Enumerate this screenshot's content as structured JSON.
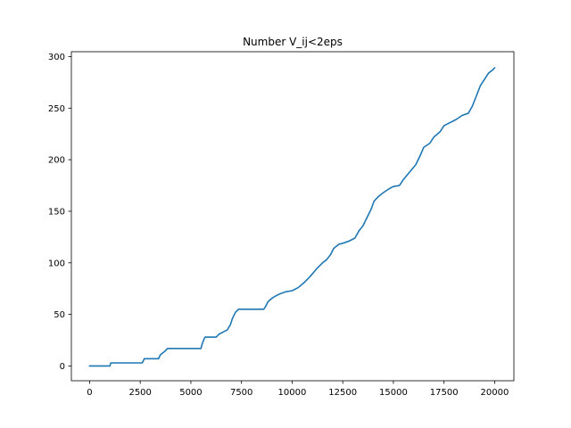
{
  "chart_data": {
    "type": "line",
    "title": "Number V_ij<2eps",
    "xlabel": "",
    "ylabel": "",
    "xlim": [
      -900,
      20950
    ],
    "ylim": [
      -14.3,
      304.7
    ],
    "xticks": [
      0,
      2500,
      5000,
      7500,
      10000,
      12500,
      15000,
      17500,
      20000
    ],
    "xtick_labels": [
      "0",
      "2500",
      "5000",
      "7500",
      "10000",
      "12500",
      "15000",
      "17500",
      "20000"
    ],
    "yticks": [
      0,
      50,
      100,
      150,
      200,
      250,
      300
    ],
    "ytick_labels": [
      "0",
      "50",
      "100",
      "150",
      "200",
      "250",
      "300"
    ],
    "grid": false,
    "legend": "none",
    "series": [
      {
        "color": "#1f77b4",
        "points": [
          [
            0,
            0
          ],
          [
            1000,
            0
          ],
          [
            1050,
            3
          ],
          [
            2600,
            3
          ],
          [
            2700,
            7
          ],
          [
            3400,
            7
          ],
          [
            3500,
            11
          ],
          [
            3700,
            14
          ],
          [
            3850,
            17
          ],
          [
            5500,
            17
          ],
          [
            5550,
            21
          ],
          [
            5650,
            26
          ],
          [
            5700,
            28
          ],
          [
            6250,
            28
          ],
          [
            6400,
            31
          ],
          [
            6600,
            33
          ],
          [
            6800,
            35
          ],
          [
            6950,
            40
          ],
          [
            7050,
            46
          ],
          [
            7200,
            52
          ],
          [
            7350,
            55
          ],
          [
            8600,
            55
          ],
          [
            8700,
            58
          ],
          [
            8800,
            62
          ],
          [
            8900,
            64
          ],
          [
            9100,
            67
          ],
          [
            9400,
            70
          ],
          [
            9700,
            72
          ],
          [
            10000,
            73
          ],
          [
            10300,
            76
          ],
          [
            10600,
            81
          ],
          [
            10900,
            87
          ],
          [
            11200,
            94
          ],
          [
            11500,
            100
          ],
          [
            11700,
            103
          ],
          [
            11900,
            108
          ],
          [
            12050,
            114
          ],
          [
            12300,
            118
          ],
          [
            12500,
            119
          ],
          [
            12800,
            121
          ],
          [
            13100,
            124
          ],
          [
            13300,
            131
          ],
          [
            13500,
            136
          ],
          [
            13700,
            144
          ],
          [
            13900,
            152
          ],
          [
            14050,
            160
          ],
          [
            14300,
            165
          ],
          [
            14500,
            168
          ],
          [
            14800,
            172
          ],
          [
            15000,
            174
          ],
          [
            15300,
            175
          ],
          [
            15500,
            181
          ],
          [
            15800,
            188
          ],
          [
            16100,
            195
          ],
          [
            16300,
            203
          ],
          [
            16500,
            212
          ],
          [
            16800,
            216
          ],
          [
            17000,
            222
          ],
          [
            17300,
            227
          ],
          [
            17500,
            233
          ],
          [
            17800,
            236
          ],
          [
            18100,
            239
          ],
          [
            18400,
            243
          ],
          [
            18700,
            245
          ],
          [
            18900,
            252
          ],
          [
            19100,
            262
          ],
          [
            19300,
            272
          ],
          [
            19500,
            278
          ],
          [
            19700,
            284
          ],
          [
            19900,
            287
          ],
          [
            20000,
            289
          ]
        ]
      }
    ]
  }
}
